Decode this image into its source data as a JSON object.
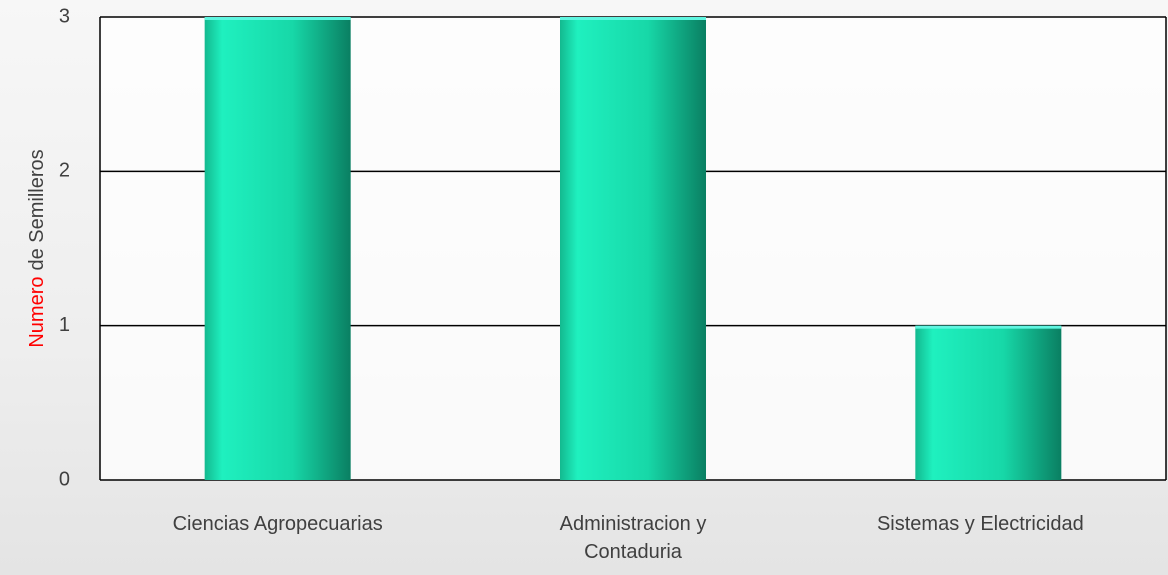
{
  "chart_data": {
    "type": "bar",
    "ylabel": [
      "Numero",
      "de Semilleros"
    ],
    "ylabel_colors": [
      "#ff0000",
      "#404040"
    ],
    "categories": [
      "Ciencias Agropecuarias",
      "Administracion y Contaduria",
      "Sistemas y Electricidad"
    ],
    "values": [
      3,
      3,
      1
    ],
    "color": "#19e6b4",
    "ylim": [
      0,
      3
    ],
    "yticks": [
      0,
      1,
      2,
      3
    ],
    "grid": true
  }
}
